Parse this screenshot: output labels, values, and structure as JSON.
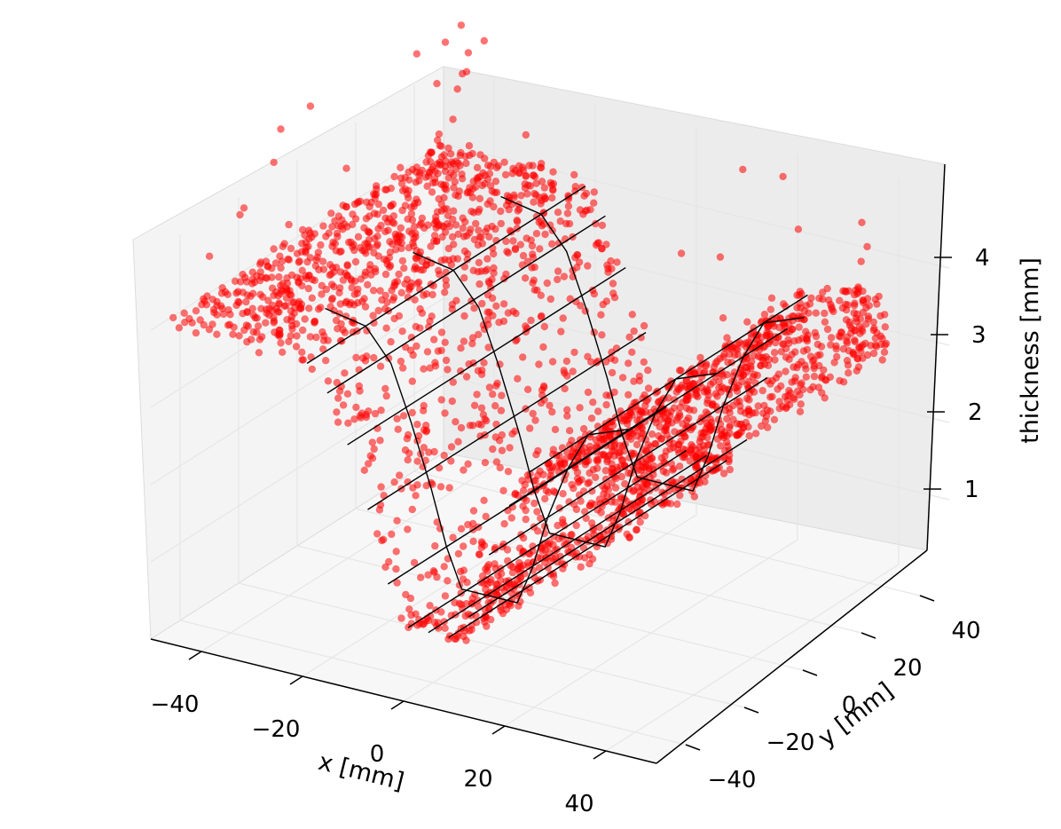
{
  "chart_data": {
    "type": "scatter",
    "projection": "3d",
    "title": "",
    "xlabel": "x [mm]",
    "ylabel": "y [mm]",
    "zlabel": "thickness [mm]",
    "xlim": [
      -50,
      50
    ],
    "ylim": [
      -50,
      50
    ],
    "zlim": [
      0,
      5
    ],
    "x_ticks": [
      -40,
      -20,
      0,
      20,
      40
    ],
    "y_ticks": [
      -40,
      -20,
      0,
      20,
      40
    ],
    "z_ticks": [
      1,
      2,
      3,
      4
    ],
    "x_tick_labels": [
      "−40",
      "−20",
      "0",
      "20",
      "40"
    ],
    "y_tick_labels": [
      "−40",
      "−20",
      "0",
      "20",
      "40"
    ],
    "z_tick_labels": [
      "1",
      "2",
      "3",
      "4"
    ],
    "grid": true,
    "surface_profile": {
      "description_free": true,
      "x": [
        -50,
        -30,
        -22,
        -17,
        -13,
        -9,
        -6,
        -3,
        8,
        11,
        14,
        18,
        22,
        30,
        50
      ],
      "z": [
        4.0,
        4.0,
        3.9,
        3.5,
        2.8,
        2.0,
        1.3,
        0.8,
        0.8,
        1.3,
        2.0,
        2.7,
        3.2,
        3.4,
        3.4
      ]
    },
    "series": [
      {
        "values": "scattered measurement points following the trough-shaped surface (~4.0 mm plateaus, ~0.8 mm bottom)",
        "color": "#ff0000"
      }
    ],
    "colors": {
      "points": "#ff0000",
      "wire": "#000000",
      "pane": "#f2f2f2",
      "grid": "#e6e6e6"
    }
  }
}
